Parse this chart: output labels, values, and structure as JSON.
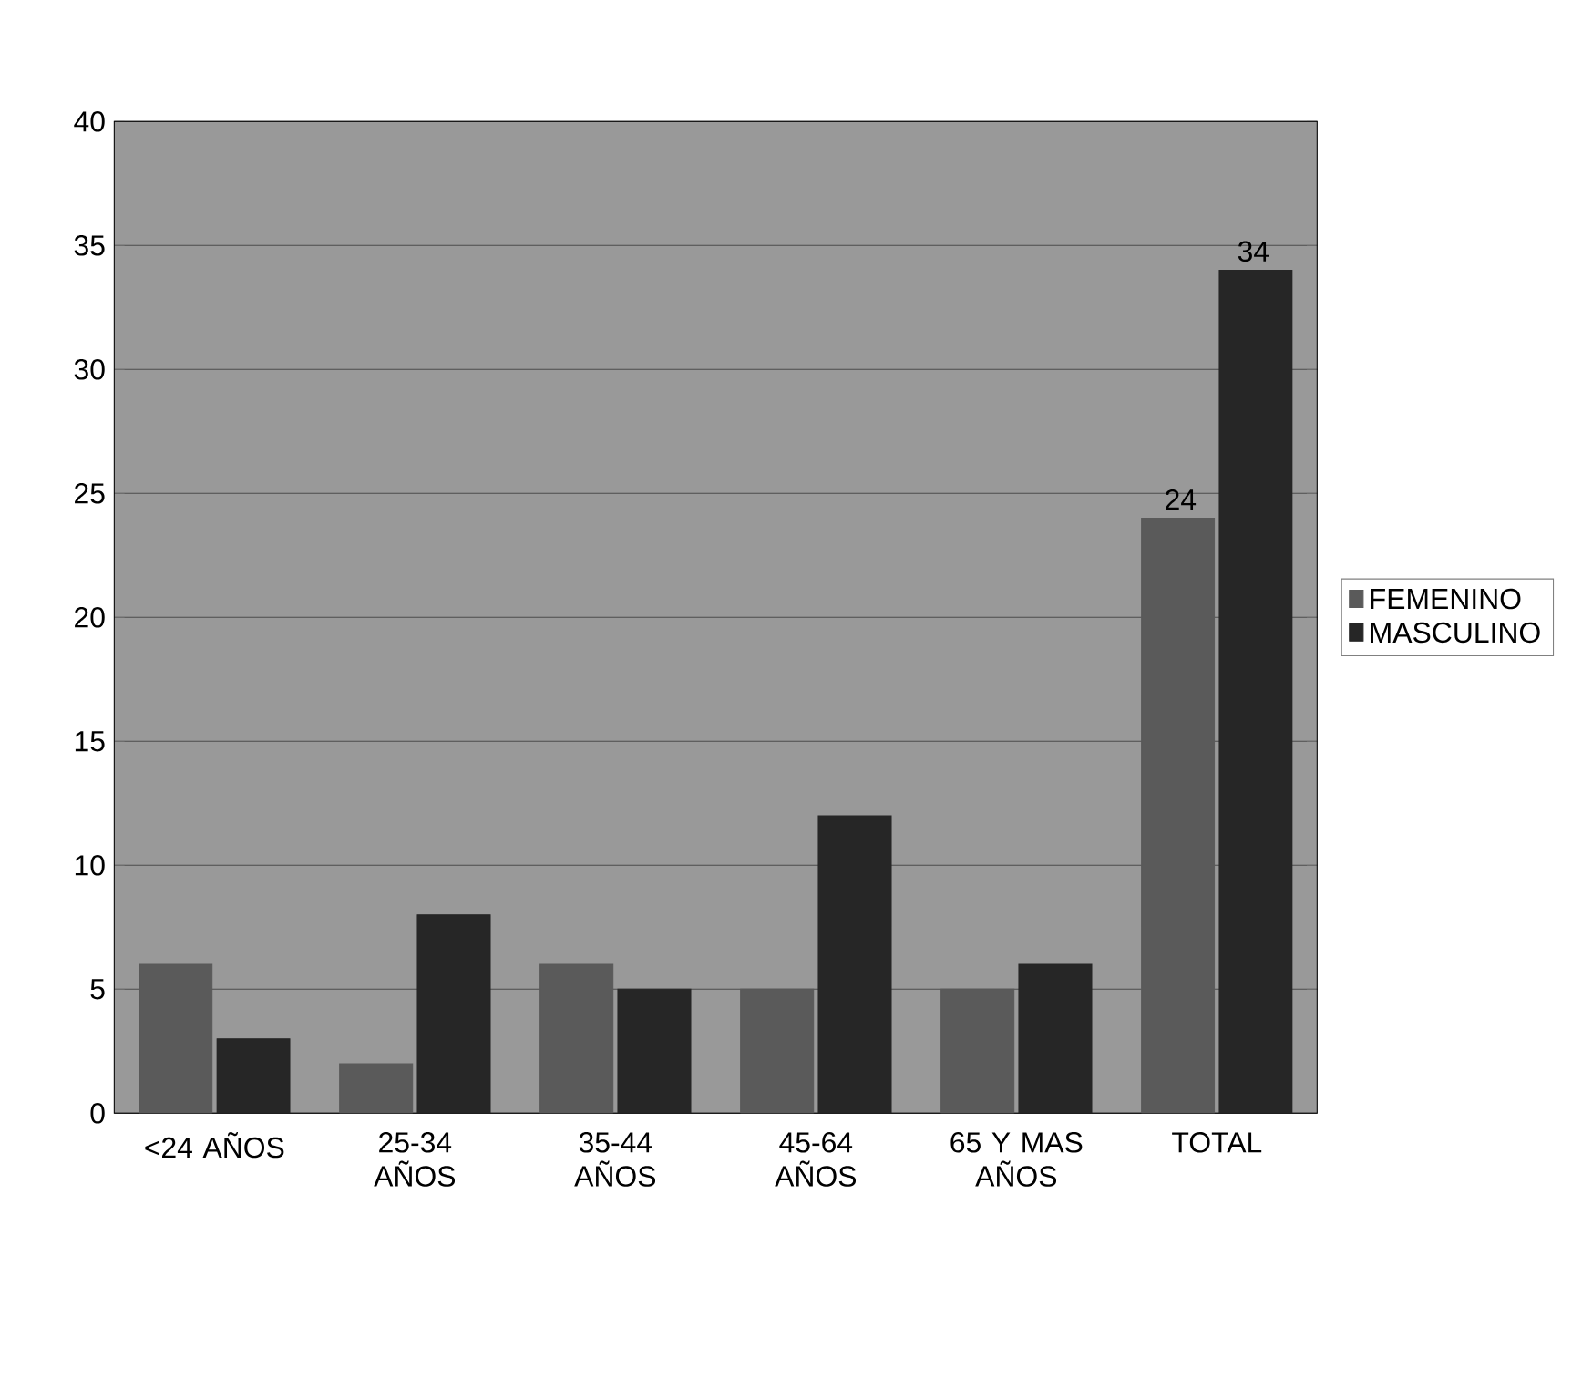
{
  "chart_data": {
    "type": "bar",
    "categories": [
      "<24 AÑOS",
      "25-34 AÑOS",
      "35-44 AÑOS",
      "45-64 AÑOS",
      "65 Y MAS AÑOS",
      "TOTAL"
    ],
    "series": [
      {
        "name": "FEMENINO",
        "color": "#5a5a5a",
        "values": [
          6,
          2,
          6,
          5,
          5,
          24
        ],
        "value_labels": [
          null,
          null,
          null,
          null,
          null,
          "24"
        ]
      },
      {
        "name": "MASCULINO",
        "color": "#262626",
        "values": [
          3,
          8,
          5,
          12,
          6,
          34
        ],
        "value_labels": [
          null,
          null,
          null,
          null,
          null,
          "34"
        ]
      }
    ],
    "ylim": [
      0,
      40
    ],
    "yticks": [
      0,
      5,
      10,
      15,
      20,
      25,
      30,
      35,
      40
    ],
    "grid": "y",
    "legend": "right"
  }
}
